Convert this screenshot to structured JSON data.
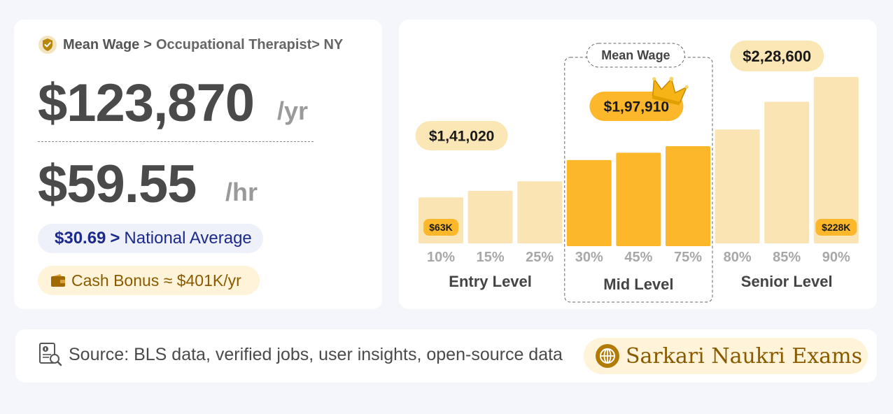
{
  "breadcrumb": {
    "item1": "Mean Wage",
    "sep": ">",
    "item2": "Occupational Therapist",
    "item3": "> NY"
  },
  "annual": {
    "value": "$123,870",
    "unit": "/yr"
  },
  "hourly": {
    "value": "$59.55",
    "unit": "/hr"
  },
  "national": {
    "amount": "$30.69",
    "arrow": ">",
    "label": "National Average"
  },
  "bonus": {
    "label": "Cash Bonus ≈ $401K/yr"
  },
  "source": {
    "text": "Source: BLS data, verified jobs, user insights, open-source data"
  },
  "brand": {
    "name": "Sarkari Naukri Exams"
  },
  "colors": {
    "light_bar": "#fae4b3",
    "mid_bar": "#fdb72a",
    "label_bg": "#fbe6b6",
    "label_badge": "#fcb72b"
  },
  "chart_data": {
    "type": "bar",
    "categories": [
      "10%",
      "15%",
      "25%",
      "30%",
      "45%",
      "75%",
      "80%",
      "85%",
      "90%"
    ],
    "values": [
      63000,
      72000,
      85000,
      118000,
      128000,
      137000,
      156000,
      194000,
      228000
    ],
    "highlight": [
      false,
      false,
      false,
      true,
      true,
      true,
      false,
      false,
      false
    ],
    "ylim": [
      0,
      228000
    ],
    "groups": [
      {
        "name": "Entry Level",
        "start": 0,
        "end": 2,
        "label": "$1,41,020"
      },
      {
        "name": "Mid Level",
        "start": 3,
        "end": 5,
        "label": "$1,97,910",
        "tag": "Mean Wage"
      },
      {
        "name": "Senior Level",
        "start": 6,
        "end": 8,
        "label": "$2,28,600"
      }
    ],
    "bar_labels": [
      {
        "index": 0,
        "text": "$63K"
      },
      {
        "index": 8,
        "text": "$228K"
      }
    ],
    "grid": false
  }
}
